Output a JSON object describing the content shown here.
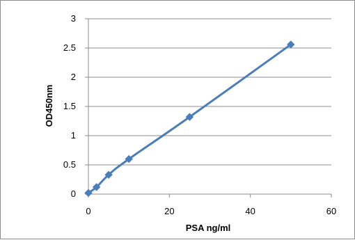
{
  "chart_data": {
    "type": "scatter",
    "xlabel": "PSA ng/ml",
    "ylabel": "OD450nm",
    "xlim": [
      0,
      60
    ],
    "ylim": [
      0,
      3
    ],
    "x_ticks": [
      0,
      20,
      40,
      60
    ],
    "x_tick_labels": [
      "0",
      "20",
      "40",
      "60"
    ],
    "y_ticks": [
      0,
      0.5,
      1,
      1.5,
      2,
      2.5,
      3
    ],
    "y_tick_labels": [
      "0",
      "0.5",
      "1",
      "1.5",
      "2",
      "2.5",
      "3"
    ],
    "grid": "horizontal",
    "legend": "none",
    "series": [
      {
        "x": [
          0,
          2,
          5,
          10,
          25,
          50
        ],
        "y": [
          0.02,
          0.12,
          0.33,
          0.6,
          1.32,
          2.56
        ],
        "color": "#4a7ebb",
        "marker": "diamond",
        "line": "smooth"
      }
    ]
  }
}
